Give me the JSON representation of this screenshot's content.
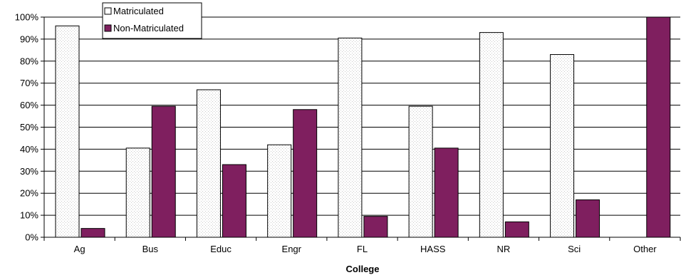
{
  "chart_data": {
    "type": "bar",
    "title": "",
    "xlabel": "College",
    "ylabel": "",
    "ylim": [
      0,
      100
    ],
    "yticks": [
      "0%",
      "10%",
      "20%",
      "30%",
      "40%",
      "50%",
      "60%",
      "70%",
      "80%",
      "90%",
      "100%"
    ],
    "grid": true,
    "legend_position": "top-left",
    "categories": [
      "Ag",
      "Bus",
      "Educ",
      "Engr",
      "FL",
      "HASS",
      "NR",
      "Sci",
      "Other"
    ],
    "series": [
      {
        "name": "Matriculated",
        "color": "#ffffff",
        "pattern": "dotted",
        "values": [
          96,
          40.5,
          67,
          42,
          90.5,
          59.5,
          93,
          83,
          0
        ]
      },
      {
        "name": "Non-Matriculated",
        "color": "#7f1f5f",
        "values": [
          4,
          59.5,
          33,
          58,
          9.5,
          40.5,
          7,
          17,
          100
        ]
      }
    ]
  }
}
